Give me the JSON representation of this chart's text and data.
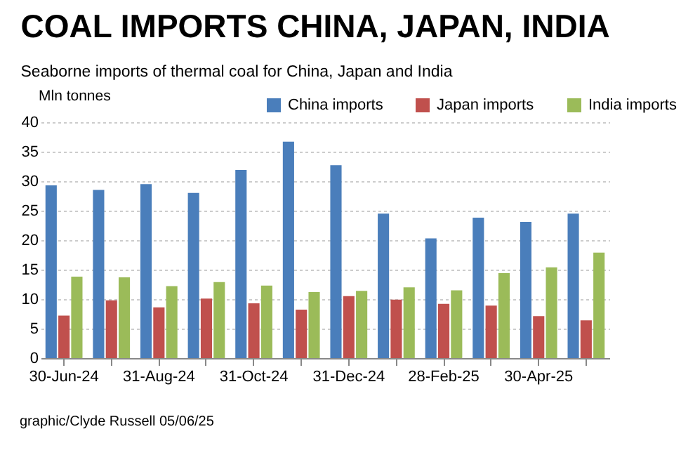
{
  "chart_data": {
    "type": "bar",
    "title": "COAL IMPORTS CHINA, JAPAN, INDIA",
    "subtitle": "Seaborne imports of thermal coal for China, Japan and India",
    "ylabel": "Mln tonnes",
    "categories": [
      "30-Jun-24",
      null,
      "31-Aug-24",
      null,
      "31-Oct-24",
      null,
      "31-Dec-24",
      null,
      "28-Feb-25",
      null,
      "30-Apr-25",
      null
    ],
    "series": [
      {
        "name": "China imports",
        "color": "#4a7ebb",
        "values": [
          29.3,
          28.5,
          29.5,
          28.0,
          31.9,
          36.7,
          32.7,
          24.5,
          20.3,
          23.8,
          23.1,
          24.5
        ]
      },
      {
        "name": "Japan imports",
        "color": "#c0504d",
        "values": [
          7.2,
          9.8,
          8.6,
          10.1,
          9.3,
          8.2,
          10.5,
          9.9,
          9.2,
          8.9,
          7.1,
          6.4
        ]
      },
      {
        "name": "India imports",
        "color": "#9bbb59",
        "values": [
          13.8,
          13.7,
          12.2,
          12.9,
          12.3,
          11.2,
          11.4,
          12.0,
          11.5,
          14.4,
          15.4,
          17.9
        ]
      }
    ],
    "ylim": [
      0,
      40
    ],
    "yticks": [
      0,
      5,
      10,
      15,
      20,
      25,
      30,
      35,
      40
    ],
    "grid": "y",
    "legend": "top",
    "annotations": [
      "graphic/Clyde Russell 05/06/25"
    ]
  }
}
